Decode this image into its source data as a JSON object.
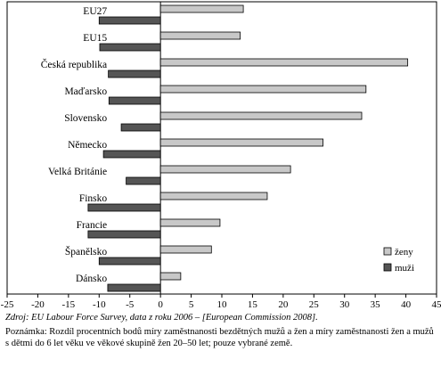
{
  "chart_data": {
    "type": "bar",
    "orientation": "horizontal",
    "categories": [
      "EU27",
      "EU15",
      "Česká republika",
      "Maďarsko",
      "Slovensko",
      "Německo",
      "Velká Británie",
      "Finsko",
      "Francie",
      "Španělsko",
      "Dánsko"
    ],
    "series": [
      {
        "name": "ženy",
        "color": "#c8c8c8",
        "values": [
          13.5,
          13,
          40.3,
          33.5,
          32.8,
          26.5,
          21.2,
          17.4,
          9.7,
          8.3,
          3.3
        ]
      },
      {
        "name": "muži",
        "color": "#555555",
        "values": [
          -10,
          -9.9,
          -8.5,
          -8.4,
          -6.4,
          -9.3,
          -5.6,
          -11.8,
          -11.8,
          -10,
          -8.6
        ]
      }
    ],
    "xlim": [
      -25,
      45
    ],
    "xticks": [
      "-25",
      "-20",
      "-15",
      "-10",
      "-5",
      "0",
      "5",
      "10",
      "15",
      "20",
      "25",
      "30",
      "35",
      "40",
      "45"
    ],
    "grid": false,
    "legend_position": "bottom-right"
  },
  "source_text": "Zdroj: EU Labour Force Survey, data z roku 2006 – [European Commission 2008].",
  "note_text": "Poznámka: Rozdíl procentních bodů míry zaměstnanosti bezdětných mužů a žen a míry zaměstnanosti žen a mužů s dětmi do 6 let věku ve věkové skupině žen 20–50 let; pouze vybrané země."
}
